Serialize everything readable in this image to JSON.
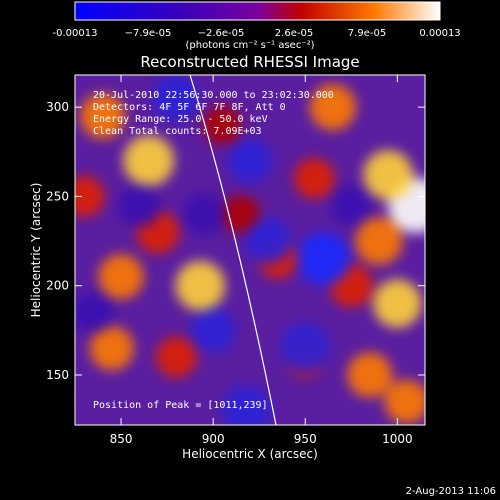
{
  "colorbar": {
    "ticks": [
      "-0.00013",
      "−7.9e-05",
      "−2.6e-05",
      "2.6e-05",
      "7.9e-05",
      "0.00013"
    ],
    "units": "(photons cm⁻² s⁻¹ asec⁻²)",
    "colors": [
      "#0000ff",
      "#3a00b8",
      "#7a00a0",
      "#c10000",
      "#ff7a00",
      "#ffffff"
    ]
  },
  "chart_data": {
    "type": "heatmap",
    "title": "Reconstructed RHESSI Image",
    "xlabel": "Heliocentric X (arcsec)",
    "ylabel": "Heliocentric Y (arcsec)",
    "xlim": [
      825,
      1015
    ],
    "ylim": [
      122,
      318
    ],
    "xticks": [
      850,
      900,
      950,
      1000
    ],
    "yticks": [
      150,
      200,
      250,
      300
    ],
    "annotations": {
      "line1": "20-Jul-2010 22:56:30.000 to 23:02:30.000",
      "line2": "Detectors: 4F 5F 6F 7F 8F, Att 0",
      "line3": "Energy Range: 25.0 - 50.0 keV",
      "line4": "Clean    Total counts: 7.09E+03",
      "peak": "Position of Peak = [1011,239]"
    },
    "peak": [
      1011,
      239
    ],
    "blobs": [
      {
        "x": 1010,
        "y": 245,
        "v": 1.0
      },
      {
        "x": 995,
        "y": 262,
        "v": 0.75
      },
      {
        "x": 1000,
        "y": 190,
        "v": 0.7
      },
      {
        "x": 985,
        "y": 150,
        "v": 0.55
      },
      {
        "x": 965,
        "y": 300,
        "v": 0.6
      },
      {
        "x": 990,
        "y": 225,
        "v": 0.65
      },
      {
        "x": 1005,
        "y": 135,
        "v": 0.5
      },
      {
        "x": 955,
        "y": 260,
        "v": 0.35
      },
      {
        "x": 975,
        "y": 200,
        "v": 0.45
      },
      {
        "x": 840,
        "y": 295,
        "v": 0.55
      },
      {
        "x": 865,
        "y": 270,
        "v": 0.8
      },
      {
        "x": 850,
        "y": 205,
        "v": 0.55
      },
      {
        "x": 893,
        "y": 200,
        "v": 0.75
      },
      {
        "x": 845,
        "y": 165,
        "v": 0.5
      },
      {
        "x": 880,
        "y": 160,
        "v": 0.35
      },
      {
        "x": 870,
        "y": 230,
        "v": 0.45
      },
      {
        "x": 905,
        "y": 290,
        "v": 0.25
      },
      {
        "x": 935,
        "y": 215,
        "v": 0.3
      },
      {
        "x": 950,
        "y": 160,
        "v": 0.35
      },
      {
        "x": 830,
        "y": 250,
        "v": 0.35
      },
      {
        "x": 915,
        "y": 240,
        "v": 0.2
      },
      {
        "x": 960,
        "y": 215,
        "v": -0.9
      },
      {
        "x": 950,
        "y": 165,
        "v": -0.7
      },
      {
        "x": 918,
        "y": 130,
        "v": -0.7
      },
      {
        "x": 880,
        "y": 305,
        "v": -0.6
      },
      {
        "x": 920,
        "y": 270,
        "v": -0.5
      },
      {
        "x": 930,
        "y": 225,
        "v": -0.55
      },
      {
        "x": 895,
        "y": 240,
        "v": -0.4
      },
      {
        "x": 860,
        "y": 245,
        "v": -0.45
      },
      {
        "x": 900,
        "y": 175,
        "v": -0.5
      },
      {
        "x": 975,
        "y": 245,
        "v": -0.35
      },
      {
        "x": 835,
        "y": 185,
        "v": -0.4
      }
    ]
  },
  "footer": {
    "date": "2-Aug-2013 11:06"
  }
}
